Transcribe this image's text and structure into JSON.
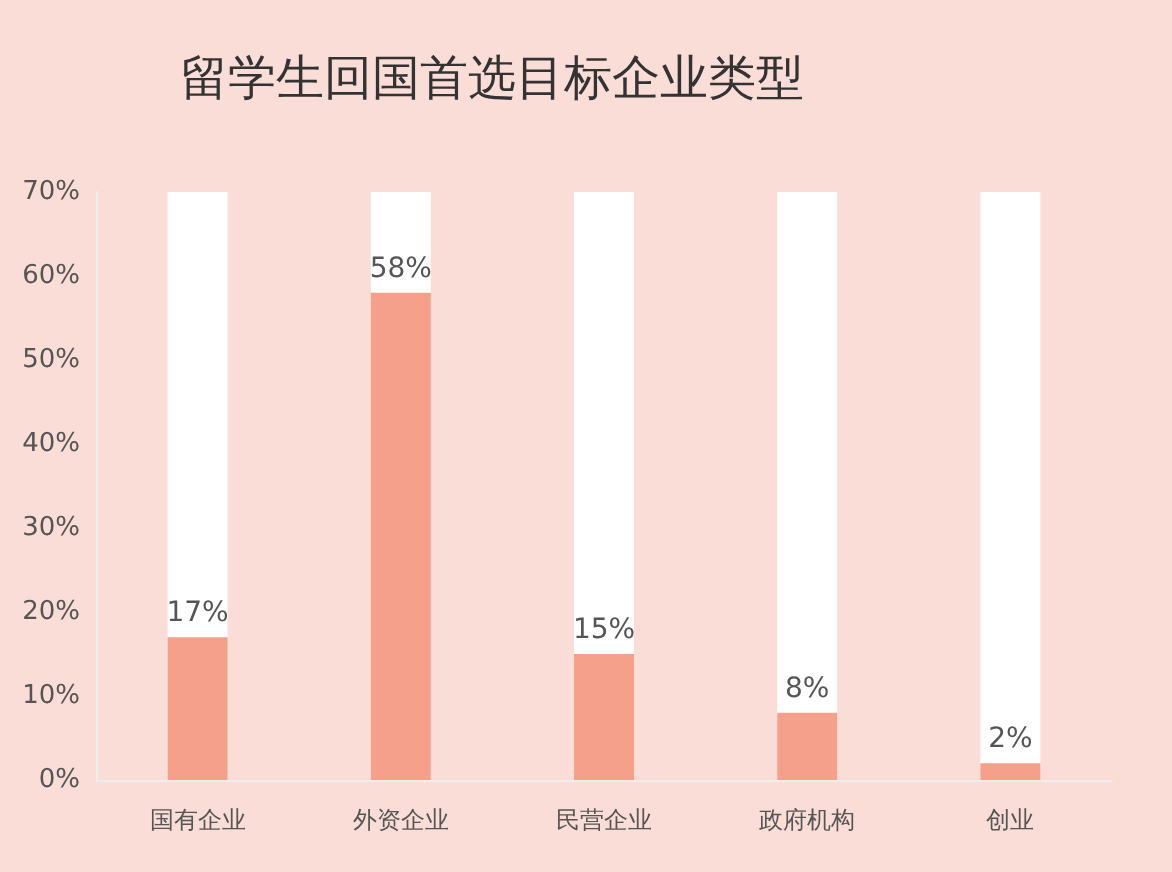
{
  "chart_data": {
    "type": "bar",
    "title": "留学生回国首选目标企业类型",
    "categories": [
      "国有企业",
      "外资企业",
      "民营企业",
      "政府机构",
      "创业"
    ],
    "values": [
      17,
      58,
      15,
      8,
      2
    ],
    "value_labels": [
      "17%",
      "58%",
      "15%",
      "8%",
      "2%"
    ],
    "color": "#f4a08a",
    "ylim": [
      0,
      70
    ],
    "yticks": [
      {
        "value": 0,
        "label": "0%"
      },
      {
        "value": 10,
        "label": "10%"
      },
      {
        "value": 20,
        "label": "20%"
      },
      {
        "value": 30,
        "label": "30%"
      },
      {
        "value": 40,
        "label": "40%"
      },
      {
        "value": 50,
        "label": "50%"
      },
      {
        "value": 60,
        "label": "60%"
      },
      {
        "value": 70,
        "label": "70%"
      }
    ],
    "grid": false
  }
}
